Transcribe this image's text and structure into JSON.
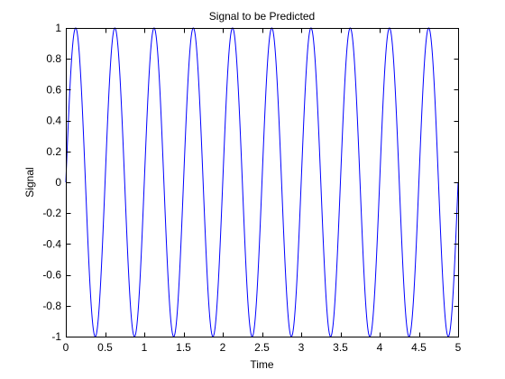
{
  "chart_data": {
    "type": "line",
    "title": "Signal to be Predicted",
    "xlabel": "Time",
    "ylabel": "Signal",
    "xlim": [
      0,
      5
    ],
    "ylim": [
      -1,
      1
    ],
    "xticks": [
      0,
      0.5,
      1,
      1.5,
      2,
      2.5,
      3,
      3.5,
      4,
      4.5,
      5
    ],
    "yticks": [
      -1,
      -0.8,
      -0.6,
      -0.4,
      -0.2,
      0,
      0.2,
      0.4,
      0.6,
      0.8,
      1
    ],
    "xtick_labels": [
      "0",
      "0.5",
      "1",
      "1.5",
      "2",
      "2.5",
      "3",
      "3.5",
      "4",
      "4.5",
      "5"
    ],
    "ytick_labels": [
      "-1",
      "-0.8",
      "-0.6",
      "-0.4",
      "-0.2",
      "0",
      "0.2",
      "0.4",
      "0.6",
      "0.8",
      "1"
    ],
    "grid": false,
    "legend": "none",
    "series": [
      {
        "function": "sin",
        "amplitude": 1,
        "frequency": 2,
        "phase": 0,
        "x_start": 0,
        "x_end": 5,
        "color": "#0000ff"
      }
    ]
  }
}
